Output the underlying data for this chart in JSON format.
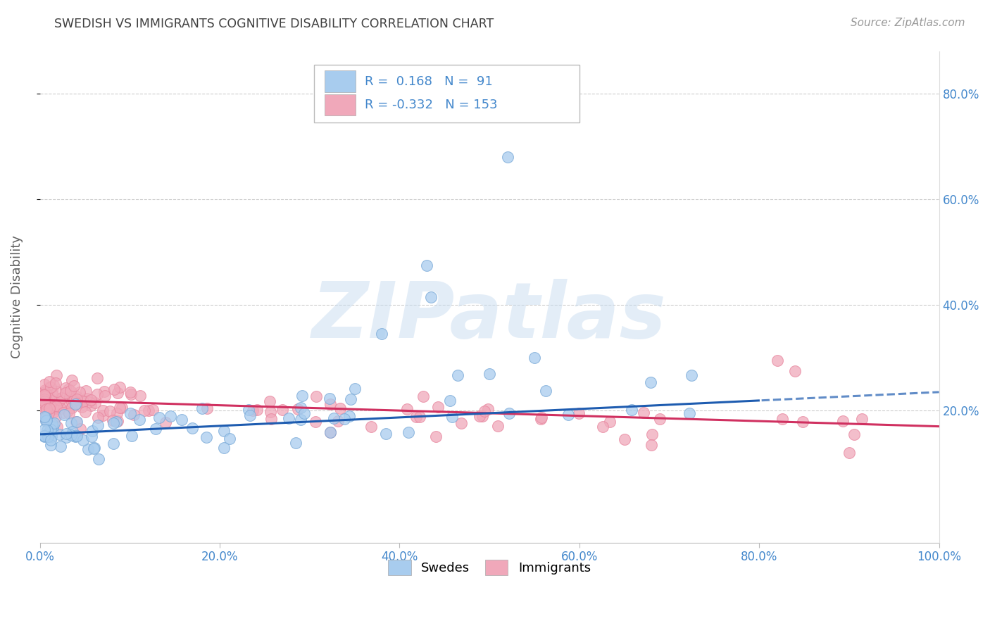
{
  "title": "SWEDISH VS IMMIGRANTS COGNITIVE DISABILITY CORRELATION CHART",
  "source": "Source: ZipAtlas.com",
  "ylabel": "Cognitive Disability",
  "xlim": [
    0,
    1.0
  ],
  "ylim": [
    -0.05,
    0.88
  ],
  "blue_color": "#A8CCEE",
  "pink_color": "#F0A8BA",
  "blue_edge_color": "#7AAAD8",
  "pink_edge_color": "#E888A0",
  "blue_line_color": "#1E5CB0",
  "pink_line_color": "#D03060",
  "blue_R": 0.168,
  "blue_N": 91,
  "pink_R": -0.332,
  "pink_N": 153,
  "watermark": "ZIPatlas",
  "legend_label_blue": "Swedes",
  "legend_label_pink": "Immigrants",
  "background_color": "#ffffff",
  "grid_color": "#cccccc",
  "title_color": "#404040",
  "axis_label_color": "#606060",
  "tick_color": "#4488CC",
  "source_color": "#999999",
  "yticks": [
    0.2,
    0.4,
    0.6,
    0.8
  ],
  "xticks": [
    0.0,
    0.2,
    0.4,
    0.6,
    0.8,
    1.0
  ],
  "blue_trend_start_y": 0.155,
  "blue_trend_end_y": 0.235,
  "pink_trend_start_y": 0.22,
  "pink_trend_end_y": 0.17
}
